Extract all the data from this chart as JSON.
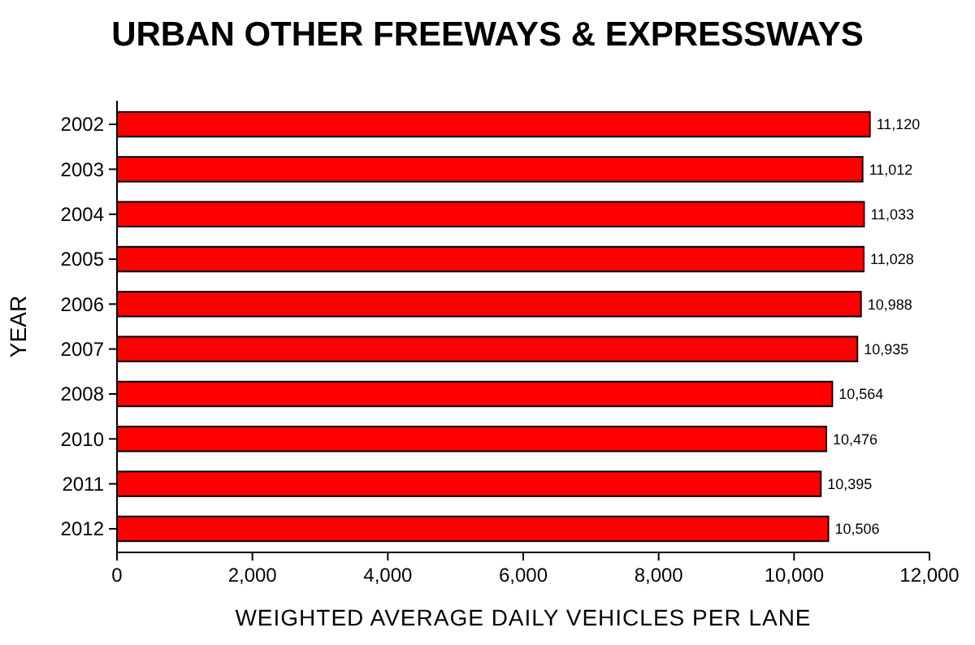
{
  "chart_data": {
    "type": "bar",
    "orientation": "horizontal",
    "title": "URBAN OTHER FREEWAYS & EXPRESSWAYS",
    "xlabel": "WEIGHTED AVERAGE DAILY VEHICLES PER LANE",
    "ylabel": "YEAR",
    "categories": [
      "2002",
      "2003",
      "2004",
      "2005",
      "2006",
      "2007",
      "2008",
      "2010",
      "2011",
      "2012"
    ],
    "values": [
      11120,
      11012,
      11033,
      11028,
      10988,
      10935,
      10564,
      10476,
      10395,
      10506
    ],
    "value_labels": [
      "11,120",
      "11,012",
      "11,033",
      "11,028",
      "10,988",
      "10,935",
      "10,564",
      "10,476",
      "10,395",
      "10,506"
    ],
    "color": "#ff0000",
    "xlim": [
      0,
      12000
    ],
    "xticks": [
      {
        "value": 0,
        "label": "0"
      },
      {
        "value": 2000,
        "label": "2,000"
      },
      {
        "value": 4000,
        "label": "4,000"
      },
      {
        "value": 6000,
        "label": "6,000"
      },
      {
        "value": 8000,
        "label": "8,000"
      },
      {
        "value": 10000,
        "label": "10,000"
      },
      {
        "value": 12000,
        "label": "12,000"
      }
    ]
  }
}
